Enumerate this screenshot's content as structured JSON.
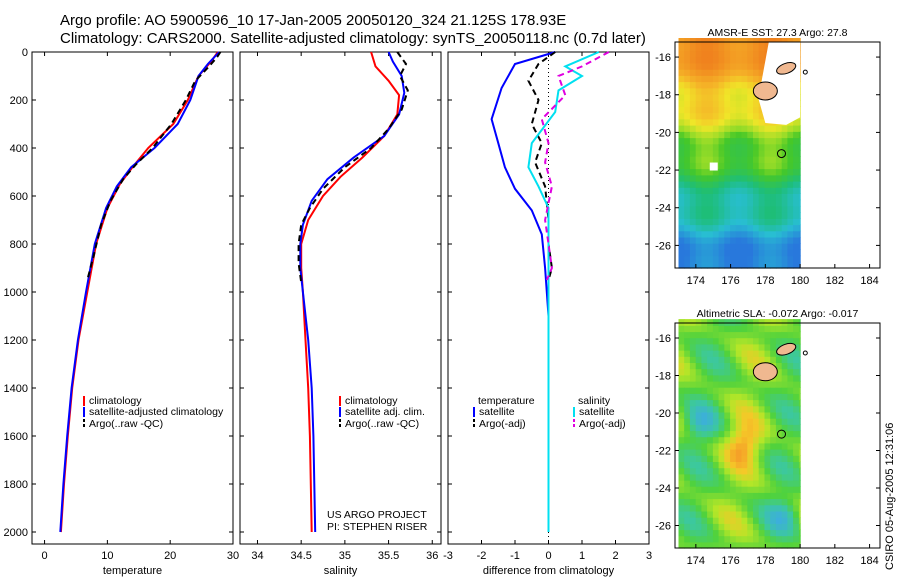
{
  "header": {
    "line1": "Argo profile: AO 5900596_10 17-Jan-2005 20050120_324 21.125S 178.93E",
    "line2": "Climatology: CARS2000. Satellite-adjusted climatology: synTS_20050118.nc (0.7d later)"
  },
  "stamp": "CSIRO 05-Aug-2005 12:31:06",
  "colors": {
    "climatology": "#ff0000",
    "satellite": "#0000ff",
    "argo": "#000000",
    "satellite_sal": "#00e0f0",
    "argo_sal": "#e000e0"
  },
  "chart_data": [
    {
      "type": "line",
      "xlabel": "temperature",
      "xlim": [
        -2,
        30
      ],
      "ylim": [
        2050,
        0
      ],
      "xticks": [
        0,
        10,
        20,
        30
      ],
      "yticks": [
        0,
        200,
        400,
        600,
        800,
        1000,
        1200,
        1400,
        1600,
        1800,
        2000
      ],
      "legend": [
        "climatology",
        "satellite-adjusted climatology",
        "Argo(..raw -QC)"
      ],
      "series": [
        {
          "name": "climatology",
          "color": "#ff0000",
          "dash": false,
          "points": [
            [
              27.6,
              0
            ],
            [
              26.5,
              40
            ],
            [
              24.5,
              100
            ],
            [
              22.8,
              200
            ],
            [
              20.5,
              300
            ],
            [
              16.5,
              400
            ],
            [
              14.0,
              480
            ],
            [
              12.0,
              550
            ],
            [
              10.0,
              650
            ],
            [
              8.2,
              800
            ],
            [
              6.8,
              1000
            ],
            [
              5.4,
              1200
            ],
            [
              4.4,
              1400
            ],
            [
              3.7,
              1600
            ],
            [
              3.1,
              1800
            ],
            [
              2.6,
              2000
            ]
          ]
        },
        {
          "name": "satellite-adjusted climatology",
          "color": "#0000ff",
          "dash": false,
          "points": [
            [
              27.8,
              0
            ],
            [
              26.0,
              50
            ],
            [
              24.5,
              100
            ],
            [
              23.2,
              200
            ],
            [
              21.2,
              300
            ],
            [
              17.5,
              400
            ],
            [
              13.8,
              480
            ],
            [
              11.5,
              560
            ],
            [
              9.8,
              650
            ],
            [
              8.0,
              800
            ],
            [
              6.6,
              1000
            ],
            [
              5.3,
              1200
            ],
            [
              4.3,
              1400
            ],
            [
              3.6,
              1600
            ],
            [
              3.0,
              1800
            ],
            [
              2.5,
              2000
            ]
          ]
        },
        {
          "name": "Argo(..raw -QC)",
          "color": "#000000",
          "dash": true,
          "points": [
            [
              28.0,
              0
            ],
            [
              27.5,
              20
            ],
            [
              26.2,
              60
            ],
            [
              24.0,
              120
            ],
            [
              22.5,
              200
            ],
            [
              20.2,
              300
            ],
            [
              17.2,
              400
            ],
            [
              14.5,
              470
            ],
            [
              12.5,
              530
            ],
            [
              10.5,
              620
            ],
            [
              9.0,
              720
            ],
            [
              7.8,
              850
            ],
            [
              6.8,
              950
            ]
          ]
        }
      ]
    },
    {
      "type": "line",
      "xlabel": "salinity",
      "xlim": [
        33.8,
        36.1
      ],
      "ylim": [
        2050,
        0
      ],
      "xticks": [
        34,
        34.5,
        35,
        35.5,
        36
      ],
      "legend": [
        "climatology",
        "satellite adj. clim.",
        "Argo(..raw -QC)"
      ],
      "annotation": [
        "US ARGO PROJECT",
        "PI: STEPHEN RISER"
      ],
      "series": [
        {
          "name": "climatology",
          "color": "#ff0000",
          "dash": false,
          "points": [
            [
              35.3,
              0
            ],
            [
              35.35,
              60
            ],
            [
              35.5,
              120
            ],
            [
              35.62,
              180
            ],
            [
              35.6,
              260
            ],
            [
              35.45,
              350
            ],
            [
              35.2,
              440
            ],
            [
              34.95,
              520
            ],
            [
              34.75,
              600
            ],
            [
              34.58,
              700
            ],
            [
              34.5,
              800
            ],
            [
              34.5,
              900
            ],
            [
              34.52,
              1000
            ],
            [
              34.55,
              1200
            ],
            [
              34.58,
              1400
            ],
            [
              34.6,
              1600
            ],
            [
              34.61,
              1800
            ],
            [
              34.62,
              2000
            ]
          ]
        },
        {
          "name": "satellite adj. clim.",
          "color": "#0000ff",
          "dash": false,
          "points": [
            [
              35.5,
              0
            ],
            [
              35.55,
              40
            ],
            [
              35.65,
              100
            ],
            [
              35.68,
              170
            ],
            [
              35.62,
              260
            ],
            [
              35.45,
              350
            ],
            [
              35.1,
              440
            ],
            [
              34.8,
              530
            ],
            [
              34.62,
              620
            ],
            [
              34.52,
              720
            ],
            [
              34.49,
              800
            ],
            [
              34.49,
              900
            ],
            [
              34.52,
              1000
            ],
            [
              34.58,
              1200
            ],
            [
              34.62,
              1400
            ],
            [
              34.64,
              1600
            ],
            [
              34.65,
              1800
            ],
            [
              34.66,
              2000
            ]
          ]
        },
        {
          "name": "Argo(..raw -QC)",
          "color": "#000000",
          "dash": true,
          "points": [
            [
              35.6,
              0
            ],
            [
              35.7,
              50
            ],
            [
              35.63,
              100
            ],
            [
              35.72,
              160
            ],
            [
              35.65,
              240
            ],
            [
              35.5,
              320
            ],
            [
              35.3,
              400
            ],
            [
              35.0,
              480
            ],
            [
              34.75,
              570
            ],
            [
              34.6,
              650
            ],
            [
              34.5,
              720
            ],
            [
              34.47,
              800
            ],
            [
              34.47,
              880
            ],
            [
              34.5,
              960
            ]
          ]
        }
      ]
    },
    {
      "type": "line",
      "xlabel": "difference from climatology",
      "xlim": [
        -3,
        3
      ],
      "ylim": [
        2050,
        0
      ],
      "xticks": [
        -3,
        -2,
        -1,
        0,
        1,
        2,
        3
      ],
      "legend_temperature": [
        "temperature",
        "satellite",
        "Argo(-adj)"
      ],
      "legend_salinity": [
        "salinity",
        "satellite",
        "Argo(-adj)"
      ],
      "series": [
        {
          "name": "satellite",
          "group": "temperature",
          "color": "#0000ff",
          "dash": false,
          "points": [
            [
              0.2,
              0
            ],
            [
              -1.0,
              50
            ],
            [
              -1.4,
              150
            ],
            [
              -1.7,
              280
            ],
            [
              -1.5,
              380
            ],
            [
              -1.3,
              480
            ],
            [
              -1.0,
              570
            ],
            [
              -0.5,
              660
            ],
            [
              -0.2,
              760
            ],
            [
              -0.1,
              900
            ],
            [
              0,
              1100
            ],
            [
              0,
              1400
            ],
            [
              0,
              1700
            ],
            [
              0,
              2000
            ]
          ]
        },
        {
          "name": "Argo(-adj)",
          "group": "temperature",
          "color": "#000000",
          "dash": true,
          "points": [
            [
              0.2,
              0
            ],
            [
              -0.3,
              50
            ],
            [
              -0.6,
              120
            ],
            [
              -0.3,
              200
            ],
            [
              -0.5,
              300
            ],
            [
              -0.2,
              380
            ],
            [
              -0.4,
              460
            ],
            [
              -0.1,
              560
            ],
            [
              0.0,
              700
            ],
            [
              0,
              800
            ],
            [
              0.1,
              900
            ],
            [
              0,
              950
            ]
          ]
        },
        {
          "name": "satellite",
          "group": "salinity",
          "color": "#00e0f0",
          "dash": false,
          "points": [
            [
              1.5,
              0
            ],
            [
              0.5,
              60
            ],
            [
              1.0,
              100
            ],
            [
              0.3,
              160
            ],
            [
              0.2,
              250
            ],
            [
              -0.5,
              380
            ],
            [
              -0.6,
              480
            ],
            [
              -0.3,
              560
            ],
            [
              0,
              650
            ],
            [
              0,
              800
            ],
            [
              0,
              1000
            ],
            [
              0,
              1500
            ],
            [
              0,
              2000
            ]
          ]
        },
        {
          "name": "Argo(-adj)",
          "group": "salinity",
          "color": "#e000e0",
          "dash": true,
          "points": [
            [
              1.8,
              0
            ],
            [
              1.0,
              60
            ],
            [
              0.3,
              100
            ],
            [
              0.5,
              180
            ],
            [
              -0.2,
              280
            ],
            [
              0.0,
              380
            ],
            [
              -0.1,
              460
            ],
            [
              0.1,
              560
            ],
            [
              -0.1,
              700
            ],
            [
              0.0,
              800
            ],
            [
              0.1,
              900
            ],
            [
              -0.05,
              950
            ]
          ]
        }
      ]
    },
    {
      "type": "heatmap",
      "title": "AMSR-E SST: 27.3 Argo: 27.8",
      "xticks": [
        174,
        176,
        178,
        180,
        182,
        184
      ],
      "yticks": [
        -16,
        -18,
        -20,
        -22,
        -24,
        -26
      ],
      "xlim": [
        172.8,
        184.6
      ],
      "ylim": [
        -27.2,
        -15.2
      ],
      "argo_position": [
        178.93,
        -21.125
      ]
    },
    {
      "type": "heatmap",
      "title": "Altimetric SLA: -0.072 Argo: -0.017",
      "xticks": [
        174,
        176,
        178,
        180,
        182,
        184
      ],
      "yticks": [
        -16,
        -18,
        -20,
        -22,
        -24,
        -26
      ],
      "xlim": [
        172.8,
        184.6
      ],
      "ylim": [
        -27.2,
        -15.2
      ],
      "argo_position": [
        178.93,
        -21.125
      ]
    }
  ]
}
